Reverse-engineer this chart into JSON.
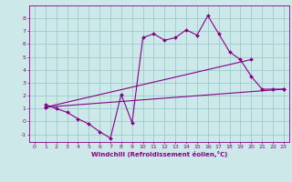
{
  "bg_color": "#cce8e8",
  "grid_color": "#99cccc",
  "line_color": "#880088",
  "marker_color": "#880088",
  "xlabel": "Windchill (Refroidissement éolien,°C)",
  "xlabel_color": "#880088",
  "tick_color": "#880088",
  "xlim": [
    -0.5,
    23.5
  ],
  "ylim": [
    -1.6,
    9.0
  ],
  "yticks": [
    -1,
    0,
    1,
    2,
    3,
    4,
    5,
    6,
    7,
    8
  ],
  "xticks": [
    0,
    1,
    2,
    3,
    4,
    5,
    6,
    7,
    8,
    9,
    10,
    11,
    12,
    13,
    14,
    15,
    16,
    17,
    18,
    19,
    20,
    21,
    22,
    23
  ],
  "line1_x": [
    1,
    2,
    3,
    4,
    5,
    6,
    7,
    8,
    9,
    10,
    11,
    12,
    13,
    14,
    15,
    16,
    17,
    18,
    19,
    20,
    21,
    22,
    23
  ],
  "line1_y": [
    1.3,
    1.0,
    0.7,
    0.2,
    -0.2,
    -0.8,
    -1.3,
    2.1,
    -0.1,
    6.5,
    6.8,
    6.3,
    6.5,
    7.1,
    6.7,
    8.2,
    6.8,
    5.4,
    4.8,
    3.5,
    2.5,
    2.5,
    2.5
  ],
  "line2_x": [
    1,
    20
  ],
  "line2_y": [
    1.1,
    4.8
  ],
  "line3_x": [
    1,
    23
  ],
  "line3_y": [
    1.1,
    2.5
  ],
  "tick_fontsize": 4.5,
  "xlabel_fontsize": 5.0
}
